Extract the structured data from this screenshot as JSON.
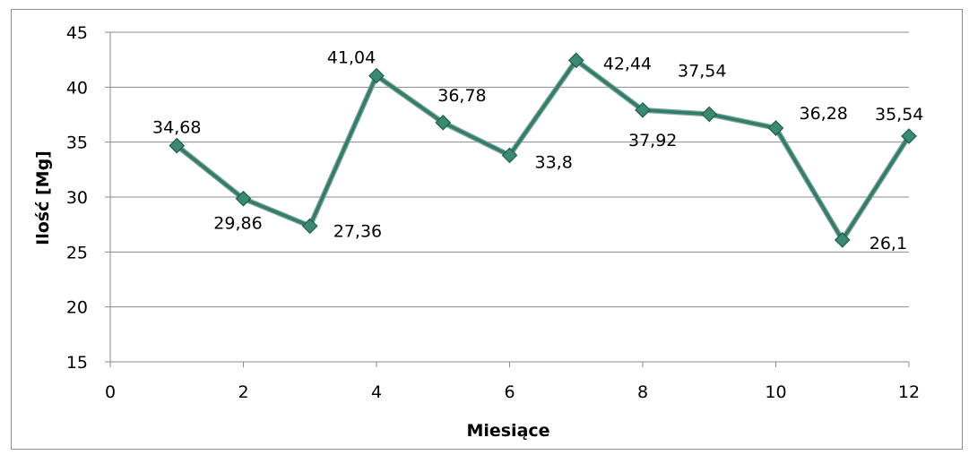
{
  "chart_data": {
    "type": "line",
    "title": "",
    "xlabel": "Miesiące",
    "ylabel": "Ilość [Mg]",
    "xlim": [
      0,
      12
    ],
    "ylim": [
      15,
      45
    ],
    "x_ticks": [
      0,
      2,
      4,
      6,
      8,
      10,
      12
    ],
    "y_ticks": [
      15,
      20,
      25,
      30,
      35,
      40,
      45
    ],
    "grid": "horizontal",
    "legend": "none",
    "line_color": "#2f7d6a",
    "marker": "diamond",
    "series": [
      {
        "x": [
          1,
          2,
          3,
          4,
          5,
          6,
          7,
          8,
          9,
          10,
          11,
          12
        ],
        "values": [
          34.68,
          29.86,
          27.36,
          41.04,
          36.78,
          33.8,
          42.44,
          37.92,
          37.54,
          36.28,
          26.1,
          35.54
        ]
      }
    ],
    "data_labels": [
      "34,68",
      "29,86",
      "27,36",
      "41,04",
      "36,78",
      "33,8",
      "42,44",
      "37,92",
      "37,54",
      "36,28",
      "26,1",
      "35,54"
    ],
    "tick_labels_y": [
      "15",
      "20",
      "25",
      "30",
      "35",
      "40",
      "45"
    ],
    "tick_labels_x": [
      "0",
      "2",
      "4",
      "6",
      "8",
      "10",
      "12"
    ]
  }
}
